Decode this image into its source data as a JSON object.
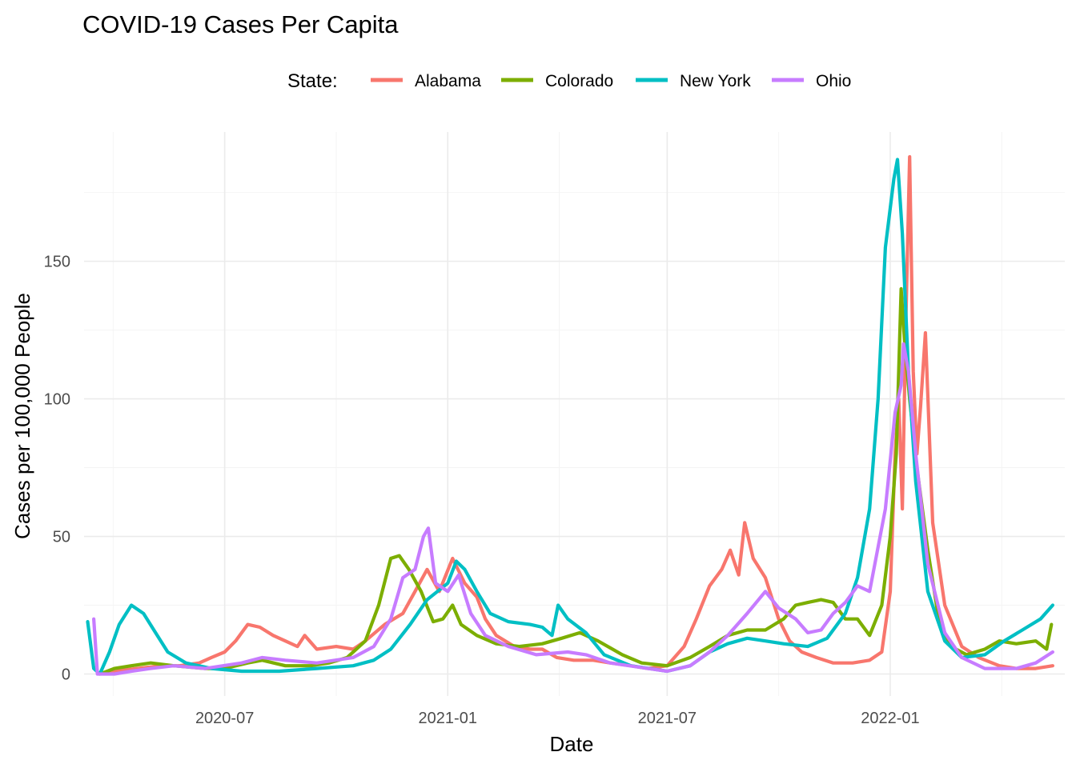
{
  "chart_data": {
    "type": "line",
    "title": "COVID-19 Cases Per Capita",
    "xlabel": "Date",
    "ylabel": "Cases per 100,000 People",
    "legend_title": "State:",
    "legend_position": "top",
    "grid": true,
    "xlim": [
      "2020-03-07",
      "2022-05-25"
    ],
    "ylim": [
      -8,
      197
    ],
    "x_ticks": [
      {
        "date": "2020-07-01",
        "label": "2020-07"
      },
      {
        "date": "2021-01-01",
        "label": "2021-01"
      },
      {
        "date": "2021-07-01",
        "label": "2021-07"
      },
      {
        "date": "2022-01-01",
        "label": "2022-01"
      }
    ],
    "y_ticks": [
      0,
      50,
      100,
      150
    ],
    "series": [
      {
        "name": "Alabama",
        "color": "#F8766D",
        "points": [
          [
            "2020-03-20",
            0
          ],
          [
            "2020-04-01",
            1
          ],
          [
            "2020-04-20",
            2
          ],
          [
            "2020-05-10",
            3
          ],
          [
            "2020-05-25",
            3
          ],
          [
            "2020-06-10",
            4
          ],
          [
            "2020-06-20",
            6
          ],
          [
            "2020-07-01",
            8
          ],
          [
            "2020-07-10",
            12
          ],
          [
            "2020-07-20",
            18
          ],
          [
            "2020-07-30",
            17
          ],
          [
            "2020-08-10",
            14
          ],
          [
            "2020-08-20",
            12
          ],
          [
            "2020-08-30",
            10
          ],
          [
            "2020-09-05",
            14
          ],
          [
            "2020-09-15",
            9
          ],
          [
            "2020-10-01",
            10
          ],
          [
            "2020-10-15",
            9
          ],
          [
            "2020-10-25",
            12
          ],
          [
            "2020-11-10",
            18
          ],
          [
            "2020-11-25",
            22
          ],
          [
            "2020-12-05",
            30
          ],
          [
            "2020-12-15",
            38
          ],
          [
            "2020-12-25",
            30
          ],
          [
            "2021-01-05",
            42
          ],
          [
            "2021-01-15",
            33
          ],
          [
            "2021-01-25",
            28
          ],
          [
            "2021-02-01",
            20
          ],
          [
            "2021-02-10",
            14
          ],
          [
            "2021-02-25",
            10
          ],
          [
            "2021-03-10",
            9
          ],
          [
            "2021-03-20",
            9
          ],
          [
            "2021-04-01",
            6
          ],
          [
            "2021-04-15",
            5
          ],
          [
            "2021-05-01",
            5
          ],
          [
            "2021-05-15",
            4
          ],
          [
            "2021-06-01",
            3
          ],
          [
            "2021-06-15",
            2
          ],
          [
            "2021-07-01",
            3
          ],
          [
            "2021-07-15",
            10
          ],
          [
            "2021-07-25",
            20
          ],
          [
            "2021-08-05",
            32
          ],
          [
            "2021-08-15",
            38
          ],
          [
            "2021-08-22",
            45
          ],
          [
            "2021-08-29",
            36
          ],
          [
            "2021-09-03",
            55
          ],
          [
            "2021-09-10",
            42
          ],
          [
            "2021-09-20",
            35
          ],
          [
            "2021-10-01",
            20
          ],
          [
            "2021-10-10",
            12
          ],
          [
            "2021-10-20",
            8
          ],
          [
            "2021-11-01",
            6
          ],
          [
            "2021-11-15",
            4
          ],
          [
            "2021-12-01",
            4
          ],
          [
            "2021-12-15",
            5
          ],
          [
            "2021-12-25",
            8
          ],
          [
            "2022-01-01",
            30
          ],
          [
            "2022-01-05",
            80
          ],
          [
            "2022-01-08",
            100
          ],
          [
            "2022-01-11",
            60
          ],
          [
            "2022-01-14",
            130
          ],
          [
            "2022-01-17",
            188
          ],
          [
            "2022-01-20",
            110
          ],
          [
            "2022-01-23",
            80
          ],
          [
            "2022-01-26",
            97
          ],
          [
            "2022-01-30",
            124
          ],
          [
            "2022-02-05",
            55
          ],
          [
            "2022-02-15",
            25
          ],
          [
            "2022-03-01",
            10
          ],
          [
            "2022-03-15",
            6
          ],
          [
            "2022-04-01",
            3
          ],
          [
            "2022-04-15",
            2
          ],
          [
            "2022-05-01",
            2
          ],
          [
            "2022-05-15",
            3
          ]
        ]
      },
      {
        "name": "Colorado",
        "color": "#7CAE00",
        "points": [
          [
            "2020-03-20",
            0
          ],
          [
            "2020-04-01",
            2
          ],
          [
            "2020-04-15",
            3
          ],
          [
            "2020-05-01",
            4
          ],
          [
            "2020-05-20",
            3
          ],
          [
            "2020-06-15",
            2
          ],
          [
            "2020-07-01",
            2
          ],
          [
            "2020-07-20",
            4
          ],
          [
            "2020-08-01",
            5
          ],
          [
            "2020-08-20",
            3
          ],
          [
            "2020-09-10",
            3
          ],
          [
            "2020-09-25",
            4
          ],
          [
            "2020-10-10",
            6
          ],
          [
            "2020-10-25",
            12
          ],
          [
            "2020-11-05",
            25
          ],
          [
            "2020-11-15",
            42
          ],
          [
            "2020-11-22",
            43
          ],
          [
            "2020-11-30",
            38
          ],
          [
            "2020-12-10",
            30
          ],
          [
            "2020-12-20",
            19
          ],
          [
            "2020-12-28",
            20
          ],
          [
            "2021-01-05",
            25
          ],
          [
            "2021-01-12",
            18
          ],
          [
            "2021-01-25",
            14
          ],
          [
            "2021-02-10",
            11
          ],
          [
            "2021-03-01",
            10
          ],
          [
            "2021-03-20",
            11
          ],
          [
            "2021-04-05",
            13
          ],
          [
            "2021-04-20",
            15
          ],
          [
            "2021-05-05",
            12
          ],
          [
            "2021-05-25",
            7
          ],
          [
            "2021-06-10",
            4
          ],
          [
            "2021-07-01",
            3
          ],
          [
            "2021-07-20",
            6
          ],
          [
            "2021-08-05",
            10
          ],
          [
            "2021-08-20",
            14
          ],
          [
            "2021-09-05",
            16
          ],
          [
            "2021-09-20",
            16
          ],
          [
            "2021-10-05",
            20
          ],
          [
            "2021-10-15",
            25
          ],
          [
            "2021-10-25",
            26
          ],
          [
            "2021-11-05",
            27
          ],
          [
            "2021-11-15",
            26
          ],
          [
            "2021-11-25",
            20
          ],
          [
            "2021-12-05",
            20
          ],
          [
            "2021-12-15",
            14
          ],
          [
            "2021-12-25",
            25
          ],
          [
            "2022-01-01",
            50
          ],
          [
            "2022-01-06",
            80
          ],
          [
            "2022-01-10",
            140
          ],
          [
            "2022-01-13",
            120
          ],
          [
            "2022-01-17",
            100
          ],
          [
            "2022-01-23",
            75
          ],
          [
            "2022-02-01",
            45
          ],
          [
            "2022-02-10",
            20
          ],
          [
            "2022-02-20",
            10
          ],
          [
            "2022-03-05",
            7
          ],
          [
            "2022-03-20",
            9
          ],
          [
            "2022-04-01",
            12
          ],
          [
            "2022-04-15",
            11
          ],
          [
            "2022-05-01",
            12
          ],
          [
            "2022-05-10",
            9
          ],
          [
            "2022-05-14",
            18
          ]
        ]
      },
      {
        "name": "New York",
        "color": "#00BFC4",
        "points": [
          [
            "2020-03-10",
            19
          ],
          [
            "2020-03-15",
            2
          ],
          [
            "2020-03-20",
            0
          ],
          [
            "2020-03-28",
            8
          ],
          [
            "2020-04-05",
            18
          ],
          [
            "2020-04-15",
            25
          ],
          [
            "2020-04-25",
            22
          ],
          [
            "2020-05-05",
            15
          ],
          [
            "2020-05-15",
            8
          ],
          [
            "2020-05-30",
            4
          ],
          [
            "2020-06-20",
            2
          ],
          [
            "2020-07-15",
            1
          ],
          [
            "2020-08-15",
            1
          ],
          [
            "2020-09-15",
            2
          ],
          [
            "2020-10-15",
            3
          ],
          [
            "2020-11-01",
            5
          ],
          [
            "2020-11-15",
            9
          ],
          [
            "2020-12-01",
            18
          ],
          [
            "2020-12-15",
            27
          ],
          [
            "2021-01-01",
            33
          ],
          [
            "2021-01-08",
            41
          ],
          [
            "2021-01-15",
            38
          ],
          [
            "2021-01-25",
            30
          ],
          [
            "2021-02-05",
            22
          ],
          [
            "2021-02-20",
            19
          ],
          [
            "2021-03-10",
            18
          ],
          [
            "2021-03-20",
            17
          ],
          [
            "2021-03-28",
            14
          ],
          [
            "2021-04-02",
            25
          ],
          [
            "2021-04-10",
            20
          ],
          [
            "2021-04-25",
            15
          ],
          [
            "2021-05-10",
            7
          ],
          [
            "2021-06-01",
            3
          ],
          [
            "2021-07-01",
            1
          ],
          [
            "2021-07-20",
            3
          ],
          [
            "2021-08-05",
            8
          ],
          [
            "2021-08-20",
            11
          ],
          [
            "2021-09-05",
            13
          ],
          [
            "2021-09-20",
            12
          ],
          [
            "2021-10-05",
            11
          ],
          [
            "2021-10-25",
            10
          ],
          [
            "2021-11-10",
            13
          ],
          [
            "2021-11-25",
            22
          ],
          [
            "2021-12-05",
            35
          ],
          [
            "2021-12-15",
            60
          ],
          [
            "2021-12-22",
            100
          ],
          [
            "2021-12-28",
            155
          ],
          [
            "2022-01-04",
            180
          ],
          [
            "2022-01-07",
            187
          ],
          [
            "2022-01-11",
            160
          ],
          [
            "2022-01-16",
            110
          ],
          [
            "2022-01-22",
            70
          ],
          [
            "2022-02-01",
            30
          ],
          [
            "2022-02-15",
            12
          ],
          [
            "2022-03-01",
            6
          ],
          [
            "2022-03-20",
            7
          ],
          [
            "2022-04-05",
            12
          ],
          [
            "2022-04-20",
            16
          ],
          [
            "2022-05-05",
            20
          ],
          [
            "2022-05-15",
            25
          ]
        ]
      },
      {
        "name": "Ohio",
        "color": "#C77CFF",
        "points": [
          [
            "2020-03-15",
            20
          ],
          [
            "2020-03-18",
            0
          ],
          [
            "2020-04-01",
            0
          ],
          [
            "2020-04-15",
            1
          ],
          [
            "2020-05-01",
            2
          ],
          [
            "2020-05-20",
            3
          ],
          [
            "2020-06-15",
            2
          ],
          [
            "2020-07-15",
            4
          ],
          [
            "2020-08-01",
            6
          ],
          [
            "2020-08-20",
            5
          ],
          [
            "2020-09-15",
            4
          ],
          [
            "2020-10-15",
            6
          ],
          [
            "2020-11-01",
            10
          ],
          [
            "2020-11-15",
            20
          ],
          [
            "2020-11-25",
            35
          ],
          [
            "2020-12-05",
            38
          ],
          [
            "2020-12-12",
            50
          ],
          [
            "2020-12-16",
            53
          ],
          [
            "2020-12-22",
            33
          ],
          [
            "2021-01-01",
            30
          ],
          [
            "2021-01-10",
            36
          ],
          [
            "2021-01-20",
            22
          ],
          [
            "2021-02-01",
            14
          ],
          [
            "2021-02-20",
            10
          ],
          [
            "2021-03-15",
            7
          ],
          [
            "2021-04-10",
            8
          ],
          [
            "2021-04-25",
            7
          ],
          [
            "2021-05-15",
            4
          ],
          [
            "2021-06-15",
            2
          ],
          [
            "2021-07-01",
            1
          ],
          [
            "2021-07-20",
            3
          ],
          [
            "2021-08-05",
            8
          ],
          [
            "2021-08-20",
            14
          ],
          [
            "2021-09-05",
            22
          ],
          [
            "2021-09-20",
            30
          ],
          [
            "2021-10-01",
            24
          ],
          [
            "2021-10-15",
            20
          ],
          [
            "2021-10-25",
            15
          ],
          [
            "2021-11-05",
            16
          ],
          [
            "2021-11-15",
            22
          ],
          [
            "2021-11-25",
            26
          ],
          [
            "2021-12-05",
            32
          ],
          [
            "2021-12-15",
            30
          ],
          [
            "2021-12-28",
            60
          ],
          [
            "2022-01-05",
            95
          ],
          [
            "2022-01-10",
            105
          ],
          [
            "2022-01-12",
            120
          ],
          [
            "2022-01-16",
            110
          ],
          [
            "2022-01-22",
            80
          ],
          [
            "2022-02-01",
            40
          ],
          [
            "2022-02-15",
            15
          ],
          [
            "2022-03-01",
            6
          ],
          [
            "2022-03-20",
            2
          ],
          [
            "2022-04-15",
            2
          ],
          [
            "2022-05-01",
            4
          ],
          [
            "2022-05-15",
            8
          ]
        ]
      }
    ]
  }
}
